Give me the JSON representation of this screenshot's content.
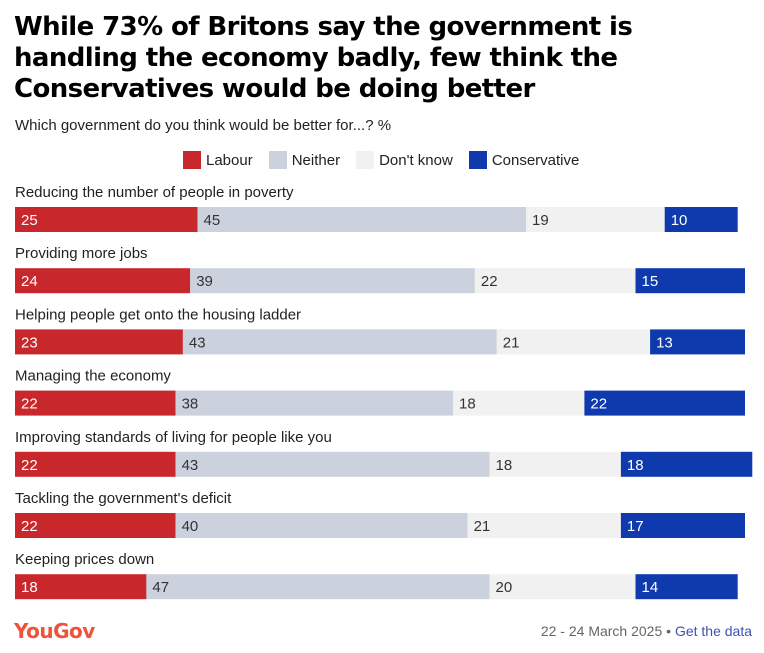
{
  "title": "While 73% of Britons say the government is handling the economy badly, few think the Conservatives would be doing better",
  "subtitle": "Which government do you think would be better for...? %",
  "footer": {
    "logo": "YouGov",
    "date": "22 - 24 March 2025",
    "separator": "•",
    "link": "Get the data"
  },
  "colors": {
    "Labour": "#c8282c",
    "Neither": "#ccd2dd",
    "Don't know": "#f1f1f1",
    "Conservative": "#0f3aad",
    "logo": "#f0533a"
  },
  "chart_data": {
    "type": "bar",
    "orientation": "horizontal",
    "stacked": true,
    "legend": "top",
    "series_names": [
      "Labour",
      "Neither",
      "Don't know",
      "Conservative"
    ],
    "categories": [
      "Reducing the number of people in poverty",
      "Providing more jobs",
      "Helping people get onto the housing ladder",
      "Managing the economy",
      "Improving standards of living for people like you",
      "Tackling the government's deficit",
      "Keeping prices down"
    ],
    "series": [
      {
        "name": "Labour",
        "values": [
          25,
          24,
          23,
          22,
          22,
          22,
          18
        ]
      },
      {
        "name": "Neither",
        "values": [
          45,
          39,
          43,
          38,
          43,
          40,
          47
        ]
      },
      {
        "name": "Don't know",
        "values": [
          19,
          22,
          21,
          18,
          18,
          21,
          20
        ]
      },
      {
        "name": "Conservative",
        "values": [
          10,
          15,
          13,
          22,
          18,
          17,
          14
        ]
      }
    ]
  }
}
